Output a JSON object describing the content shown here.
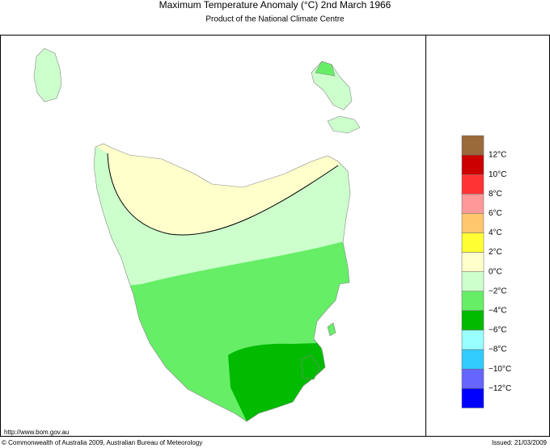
{
  "header": {
    "title": "Maximum Temperature Anomaly (°C)  2nd March 1966",
    "subtitle": "Product of the National Climate Centre"
  },
  "legend": {
    "colors": [
      "#9a6a3a",
      "#cc0000",
      "#ff3333",
      "#ff9999",
      "#ffc66e",
      "#ffff33",
      "#ffffcc",
      "#ccffcc",
      "#66ee66",
      "#00bb00",
      "#99ffff",
      "#33ccff",
      "#6666ff",
      "#0000ff"
    ],
    "labels": [
      "12°C",
      "10°C",
      "8°C",
      "6°C",
      "4°C",
      "2°C",
      "0°C",
      "−2°C",
      "−4°C",
      "−6°C",
      "−8°C",
      "−10°C",
      "−12°C"
    ]
  },
  "footer": {
    "url": "http://www.bom.gov.au",
    "copyright": "© Commonwealth of Australia 2009, Australian Bureau of Meteorology",
    "issued": "Issued: 21/03/2009"
  }
}
